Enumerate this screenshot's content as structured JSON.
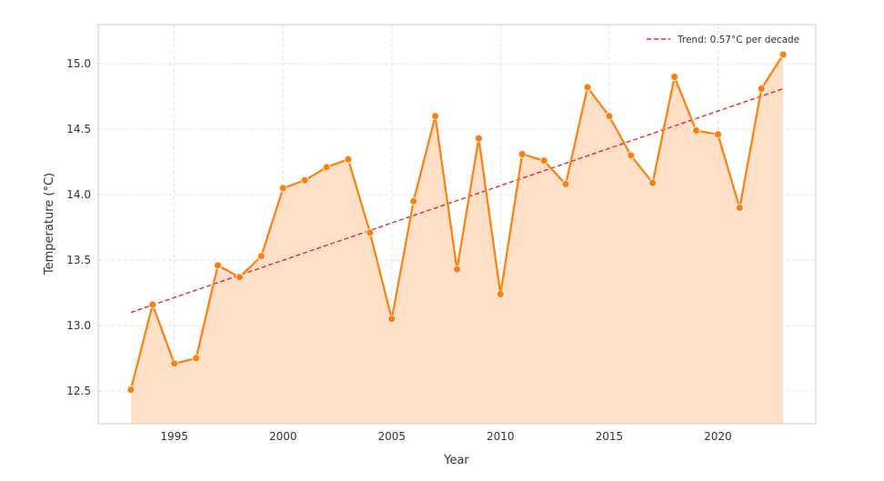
{
  "chart_data": {
    "type": "line",
    "xlabel": "Year",
    "ylabel": "Temperature (°C)",
    "xlim": [
      1991.5,
      2024.5
    ],
    "ylim": [
      12.25,
      15.3
    ],
    "x_ticks": [
      1995,
      2000,
      2005,
      2010,
      2015,
      2020
    ],
    "y_ticks": [
      12.5,
      13.0,
      13.5,
      14.0,
      14.5,
      15.0
    ],
    "x_tick_labels": [
      "1995",
      "2000",
      "2005",
      "2010",
      "2015",
      "2020"
    ],
    "y_tick_labels": [
      "12.5",
      "13.0",
      "13.5",
      "14.0",
      "14.5",
      "15.0"
    ],
    "grid": true,
    "legend_position": "top-right",
    "series": [
      {
        "x": [
          1993,
          1994,
          1995,
          1996,
          1997,
          1998,
          1999,
          2000,
          2001,
          2002,
          2003,
          2004,
          2005,
          2006,
          2007,
          2008,
          2009,
          2010,
          2011,
          2012,
          2013,
          2014,
          2015,
          2016,
          2017,
          2018,
          2019,
          2020,
          2021,
          2022,
          2023
        ],
        "values": [
          12.51,
          13.16,
          12.71,
          12.75,
          13.46,
          13.37,
          13.53,
          14.05,
          14.11,
          14.21,
          14.27,
          13.71,
          13.05,
          13.95,
          14.6,
          13.43,
          14.43,
          13.24,
          14.31,
          14.26,
          14.08,
          14.82,
          14.6,
          14.3,
          14.09,
          14.9,
          14.49,
          14.46,
          13.9,
          14.81,
          15.07
        ],
        "color": "#ff7f0e",
        "fill_color": "#fde0c7"
      },
      {
        "name": "Trend: 0.57°C per decade",
        "type": "trend",
        "x": [
          1993,
          2023
        ],
        "values": [
          13.1,
          14.81
        ],
        "color": "#e8252b"
      }
    ]
  }
}
